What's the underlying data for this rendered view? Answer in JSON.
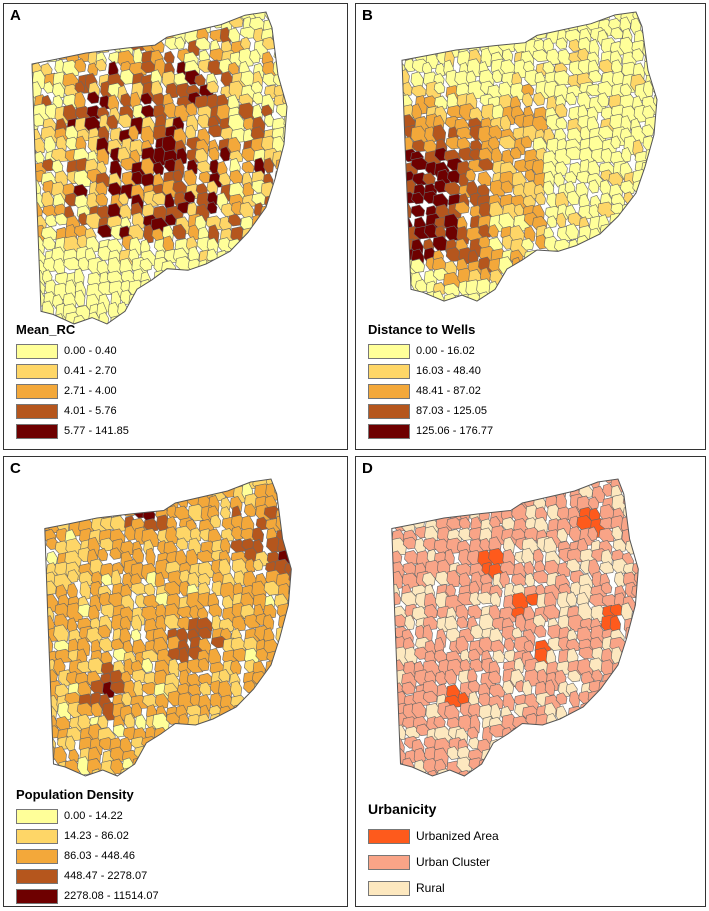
{
  "palette": {
    "border": "#666666",
    "choropleth": [
      "#ffff99",
      "#fed667",
      "#f3a83a",
      "#b5561d",
      "#6e0000"
    ],
    "urbanicity": [
      "#fe5a1c",
      "#f9a487",
      "#fde8bf"
    ]
  },
  "panels": [
    {
      "letter": "A",
      "legend_title": "Mean_RC",
      "items": [
        "0.00 - 0.40",
        "0.41 - 2.70",
        "2.71 - 4.00",
        "4.01 - 5.76",
        "5.77 - 141.85"
      ],
      "pattern": "rc"
    },
    {
      "letter": "B",
      "legend_title": "Distance to Wells",
      "items": [
        "0.00 - 16.02",
        "16.03 - 48.40",
        "48.41 - 87.02",
        "87.03 - 125.05",
        "125.06 - 176.77"
      ],
      "pattern": "wells"
    },
    {
      "letter": "C",
      "legend_title": "Population Density",
      "items": [
        "0.00 - 14.22",
        "14.23 - 86.02",
        "86.03 - 448.46",
        "448.47 - 2278.07",
        "2278.08 - 11514.07"
      ],
      "pattern": "pop"
    },
    {
      "letter": "D",
      "legend_title": "Urbanicity",
      "items": [
        "Urbanized Area",
        "Urban Cluster",
        "Rural"
      ],
      "pattern": "urban"
    }
  ]
}
